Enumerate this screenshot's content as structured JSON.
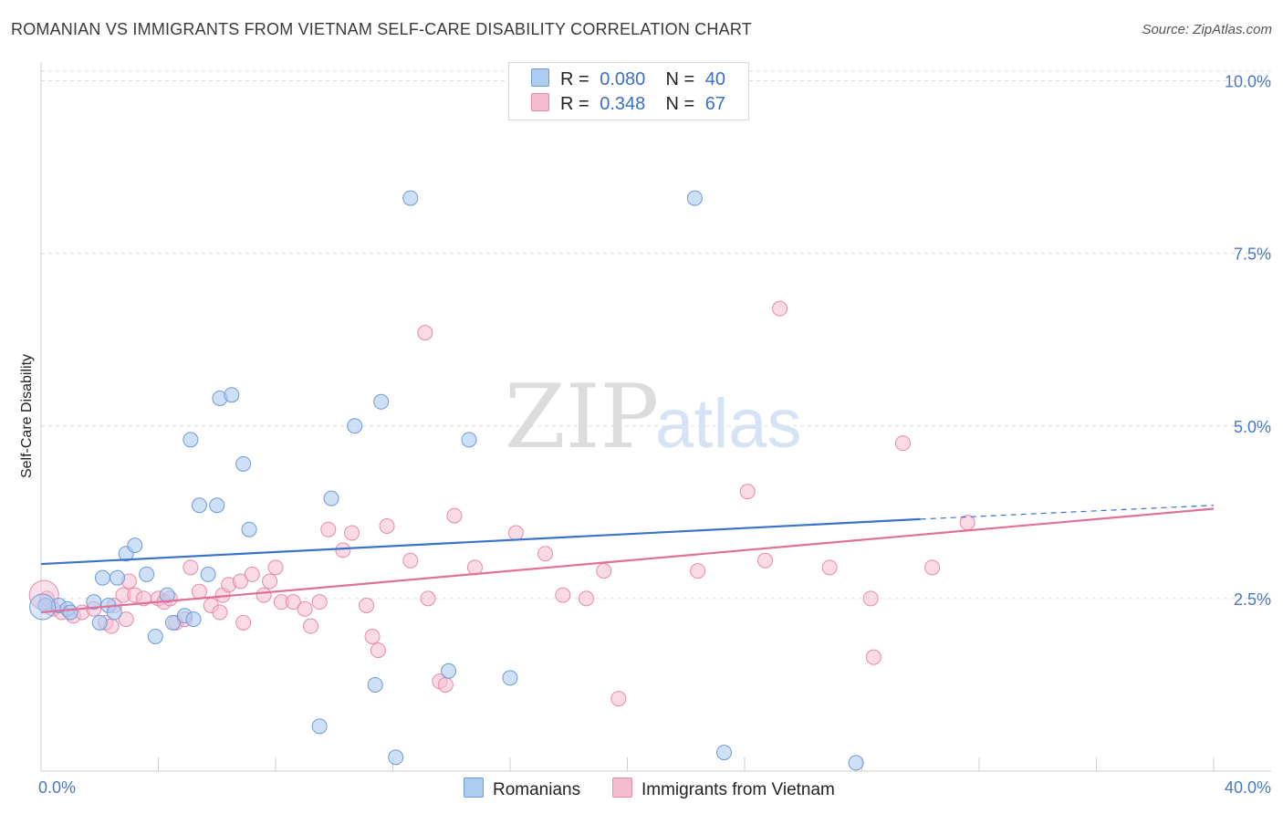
{
  "header": {
    "title": "ROMANIAN VS IMMIGRANTS FROM VIETNAM SELF-CARE DISABILITY CORRELATION CHART",
    "source": "Source: ZipAtlas.com"
  },
  "watermark": {
    "zip": "ZIP",
    "atlas": "atlas"
  },
  "legend": {
    "rows": [
      {
        "r_label": "R =",
        "r_value": "0.080",
        "n_label": "N =",
        "n_value": "40"
      },
      {
        "r_label": "R =",
        "r_value": "0.348",
        "n_label": "N =",
        "n_value": "67"
      }
    ]
  },
  "bottom_legend": {
    "series1": "Romanians",
    "series2": "Immigrants from Vietnam"
  },
  "colors": {
    "romanians_fill": "#aecbf0",
    "romanians_stroke": "#6f9ad8",
    "romanians_line": "#3a73c9",
    "vietnam_fill": "#f5bcd0",
    "vietnam_stroke": "#e88aac",
    "vietnam_line": "#e0709a",
    "tick_text": "#4a78c2",
    "grid": "#dddddd"
  },
  "chart_data": {
    "type": "scatter",
    "xlabel": "",
    "ylabel": "Self-Care Disability",
    "xlim": [
      0,
      40
    ],
    "ylim": [
      0,
      10.3
    ],
    "x_tick_labels": {
      "left": "0.0%",
      "right": "40.0%"
    },
    "y_ticks": [
      {
        "value": 2.5,
        "label": "2.5%"
      },
      {
        "value": 5.0,
        "label": "5.0%"
      },
      {
        "value": 7.5,
        "label": "7.5%"
      },
      {
        "value": 10.0,
        "label": "10.0%"
      }
    ],
    "grid": true,
    "series": [
      {
        "name": "Romanians",
        "trend": {
          "x1": 0,
          "y1": 3.0,
          "x2": 30.0,
          "y2": 3.65,
          "dash_to_x": 40,
          "dash_to_y": 3.85
        },
        "points": [
          [
            0.15,
            2.4
          ],
          [
            0.6,
            2.4
          ],
          [
            0.9,
            2.35
          ],
          [
            1.0,
            2.3
          ],
          [
            1.8,
            2.45
          ],
          [
            2.0,
            2.15
          ],
          [
            2.1,
            2.8
          ],
          [
            2.3,
            2.4
          ],
          [
            2.5,
            2.3
          ],
          [
            2.6,
            2.8
          ],
          [
            2.9,
            3.15
          ],
          [
            3.2,
            3.27
          ],
          [
            3.6,
            2.85
          ],
          [
            3.9,
            1.95
          ],
          [
            4.3,
            2.55
          ],
          [
            4.5,
            2.15
          ],
          [
            4.9,
            2.25
          ],
          [
            5.1,
            4.8
          ],
          [
            5.2,
            2.2
          ],
          [
            5.4,
            3.85
          ],
          [
            5.7,
            2.85
          ],
          [
            6.0,
            3.85
          ],
          [
            6.1,
            5.4
          ],
          [
            6.5,
            5.45
          ],
          [
            6.9,
            4.45
          ],
          [
            7.1,
            3.5
          ],
          [
            9.5,
            0.65
          ],
          [
            9.9,
            3.95
          ],
          [
            10.7,
            5.0
          ],
          [
            11.4,
            1.25
          ],
          [
            11.6,
            5.35
          ],
          [
            12.1,
            0.2
          ],
          [
            12.6,
            8.3
          ],
          [
            13.9,
            1.45
          ],
          [
            14.6,
            4.8
          ],
          [
            16.0,
            1.35
          ],
          [
            22.3,
            8.3
          ],
          [
            23.3,
            0.27
          ],
          [
            27.8,
            0.12
          ],
          [
            0.05,
            2.38
          ]
        ]
      },
      {
        "name": "Immigrants from Vietnam",
        "trend": {
          "x1": 0,
          "y1": 2.3,
          "x2": 40,
          "y2": 3.8
        },
        "points": [
          [
            0.2,
            2.5
          ],
          [
            0.4,
            2.35
          ],
          [
            0.7,
            2.3
          ],
          [
            1.1,
            2.25
          ],
          [
            1.4,
            2.3
          ],
          [
            1.8,
            2.35
          ],
          [
            2.2,
            2.15
          ],
          [
            2.4,
            2.1
          ],
          [
            2.5,
            2.4
          ],
          [
            2.8,
            2.55
          ],
          [
            2.9,
            2.2
          ],
          [
            3.0,
            2.75
          ],
          [
            3.2,
            2.55
          ],
          [
            3.5,
            2.5
          ],
          [
            4.0,
            2.5
          ],
          [
            4.2,
            2.45
          ],
          [
            4.4,
            2.5
          ],
          [
            4.6,
            2.15
          ],
          [
            4.9,
            2.2
          ],
          [
            5.1,
            2.95
          ],
          [
            5.4,
            2.6
          ],
          [
            5.8,
            2.4
          ],
          [
            6.1,
            2.3
          ],
          [
            6.2,
            2.55
          ],
          [
            6.4,
            2.7
          ],
          [
            6.8,
            2.75
          ],
          [
            6.9,
            2.15
          ],
          [
            7.2,
            2.85
          ],
          [
            7.6,
            2.55
          ],
          [
            7.8,
            2.75
          ],
          [
            8.0,
            2.95
          ],
          [
            8.2,
            2.45
          ],
          [
            8.6,
            2.45
          ],
          [
            9.0,
            2.35
          ],
          [
            9.2,
            2.1
          ],
          [
            9.5,
            2.45
          ],
          [
            9.8,
            3.5
          ],
          [
            10.3,
            3.2
          ],
          [
            10.6,
            3.45
          ],
          [
            11.1,
            2.4
          ],
          [
            11.3,
            1.95
          ],
          [
            11.5,
            1.75
          ],
          [
            11.8,
            3.55
          ],
          [
            12.6,
            3.05
          ],
          [
            13.1,
            6.35
          ],
          [
            13.2,
            2.5
          ],
          [
            13.6,
            1.3
          ],
          [
            13.8,
            1.25
          ],
          [
            14.1,
            3.7
          ],
          [
            14.8,
            2.95
          ],
          [
            16.2,
            3.45
          ],
          [
            17.2,
            3.15
          ],
          [
            17.8,
            2.55
          ],
          [
            18.6,
            2.5
          ],
          [
            19.2,
            2.9
          ],
          [
            19.7,
            1.05
          ],
          [
            22.4,
            2.9
          ],
          [
            24.1,
            4.05
          ],
          [
            24.7,
            3.05
          ],
          [
            25.2,
            6.7
          ],
          [
            26.9,
            2.95
          ],
          [
            28.3,
            2.5
          ],
          [
            28.4,
            1.65
          ],
          [
            29.4,
            4.75
          ],
          [
            30.4,
            2.95
          ],
          [
            31.6,
            3.6
          ],
          [
            0.1,
            2.55
          ]
        ]
      }
    ]
  }
}
